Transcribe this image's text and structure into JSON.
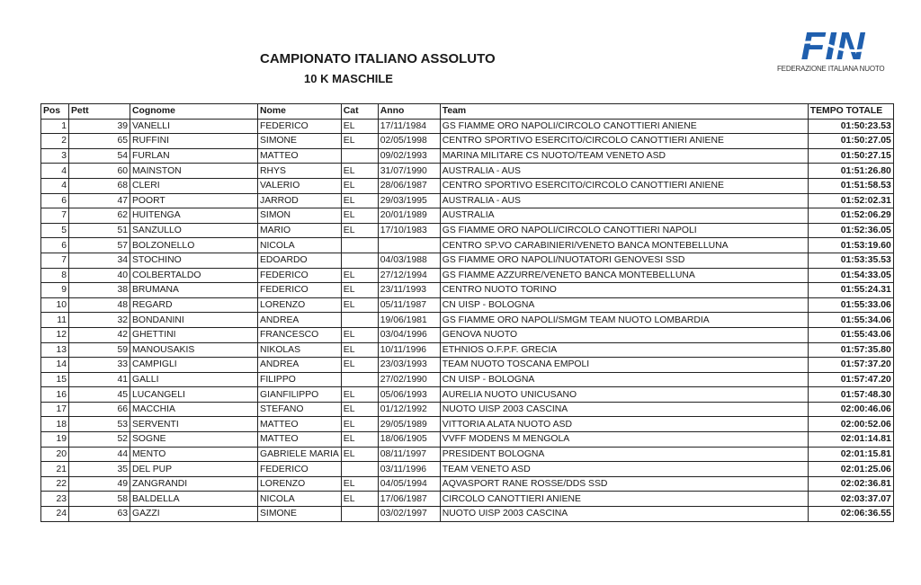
{
  "header": {
    "title": "CAMPIONATO ITALIANO ASSOLUTO",
    "subtitle": "10 K MASCHILE",
    "logo_text": "FIN",
    "logo_subtext": "FEDERAZIONE ITALIANA NUOTO",
    "logo_color": "#1f5fae"
  },
  "columns": [
    "Pos",
    "Pett",
    "Cognome",
    "Nome",
    "Cat",
    "Anno",
    "Team",
    "TEMPO TOTALE"
  ],
  "rows": [
    [
      "1",
      "39",
      "VANELLI",
      "FEDERICO",
      "EL",
      "17/11/1984",
      "GS FIAMME ORO NAPOLI/CIRCOLO CANOTTIERI ANIENE",
      "01:50:23.53"
    ],
    [
      "2",
      "65",
      "RUFFINI",
      "SIMONE",
      "EL",
      "02/05/1998",
      "CENTRO SPORTIVO ESERCITO/CIRCOLO CANOTTIERI ANIENE",
      "01:50:27.05"
    ],
    [
      "3",
      "54",
      "FURLAN",
      "MATTEO",
      "",
      "09/02/1993",
      "MARINA MILITARE CS NUOTO/TEAM VENETO ASD",
      "01:50:27.15"
    ],
    [
      "4",
      "60",
      "MAINSTON",
      "RHYS",
      "EL",
      "31/07/1990",
      "AUSTRALIA - AUS",
      "01:51:26.80"
    ],
    [
      "4",
      "68",
      "CLERI",
      "VALERIO",
      "EL",
      "28/06/1987",
      "CENTRO SPORTIVO ESERCITO/CIRCOLO CANOTTIERI ANIENE",
      "01:51:58.53"
    ],
    [
      "6",
      "47",
      "POORT",
      "JARROD",
      "EL",
      "29/03/1995",
      "AUSTRALIA - AUS",
      "01:52:02.31"
    ],
    [
      "7",
      "62",
      "HUITENGA",
      "SIMON",
      "EL",
      "20/01/1989",
      "AUSTRALIA",
      "01:52:06.29"
    ],
    [
      "5",
      "51",
      "SANZULLO",
      "MARIO",
      "EL",
      "17/10/1983",
      "GS FIAMME ORO NAPOLI/CIRCOLO CANOTTIERI NAPOLI",
      "01:52:36.05"
    ],
    [
      "6",
      "57",
      "BOLZONELLO",
      "NICOLA",
      "",
      "",
      "CENTRO SP.VO CARABINIERI/VENETO BANCA MONTEBELLUNA",
      "01:53:19.60"
    ],
    [
      "7",
      "34",
      "STOCHINO",
      "EDOARDO",
      "",
      "04/03/1988",
      "GS FIAMME ORO NAPOLI/NUOTATORI GENOVESI SSD",
      "01:53:35.53"
    ],
    [
      "8",
      "40",
      "COLBERTALDO",
      "FEDERICO",
      "EL",
      "27/12/1994",
      "GS FIAMME AZZURRE/VENETO BANCA MONTEBELLUNA",
      "01:54:33.05"
    ],
    [
      "9",
      "38",
      "BRUMANA",
      "FEDERICO",
      "EL",
      "23/11/1993",
      "CENTRO NUOTO TORINO",
      "01:55:24.31"
    ],
    [
      "10",
      "48",
      "REGARD",
      "LORENZO",
      "EL",
      "05/11/1987",
      "CN UISP - BOLOGNA",
      "01:55:33.06"
    ],
    [
      "11",
      "32",
      "BONDANINI",
      "ANDREA",
      "",
      "19/06/1981",
      "GS FIAMME ORO NAPOLI/SMGM TEAM NUOTO LOMBARDIA",
      "01:55:34.06"
    ],
    [
      "12",
      "42",
      "GHETTINI",
      "FRANCESCO",
      "EL",
      "03/04/1996",
      "GENOVA NUOTO",
      "01:55:43.06"
    ],
    [
      "13",
      "59",
      "MANOUSAKIS",
      "NIKOLAS",
      "EL",
      "10/11/1996",
      "ETHNIOS O.F.P.F. GRECIA",
      "01:57:35.80"
    ],
    [
      "14",
      "33",
      "CAMPIGLI",
      "ANDREA",
      "EL",
      "23/03/1993",
      "TEAM NUOTO TOSCANA EMPOLI",
      "01:57:37.20"
    ],
    [
      "15",
      "41",
      "GALLI",
      "FILIPPO",
      "",
      "27/02/1990",
      "CN UISP - BOLOGNA",
      "01:57:47.20"
    ],
    [
      "16",
      "45",
      "LUCANGELI",
      "GIANFILIPPO",
      "EL",
      "05/06/1993",
      "AURELIA NUOTO UNICUSANO",
      "01:57:48.30"
    ],
    [
      "17",
      "66",
      "MACCHIA",
      "STEFANO",
      "EL",
      "01/12/1992",
      "NUOTO UISP 2003 CASCINA",
      "02:00:46.06"
    ],
    [
      "18",
      "53",
      "SERVENTI",
      "MATTEO",
      "EL",
      "29/05/1989",
      "VITTORIA ALATA NUOTO ASD",
      "02:00:52.06"
    ],
    [
      "19",
      "52",
      "SOGNE",
      "MATTEO",
      "EL",
      "18/06/1905",
      "VVFF MODENS M MENGOLA",
      "02:01:14.81"
    ],
    [
      "20",
      "44",
      "MENTO",
      "GABRIELE MARIA",
      "EL",
      "08/11/1997",
      "PRESIDENT BOLOGNA",
      "02:01:15.81"
    ],
    [
      "21",
      "35",
      "DEL PUP",
      "FEDERICO",
      "",
      "03/11/1996",
      "TEAM VENETO ASD",
      "02:01:25.06"
    ],
    [
      "22",
      "49",
      "ZANGRANDI",
      "LORENZO",
      "EL",
      "04/05/1994",
      "AQVASPORT  RANE ROSSE/DDS SSD",
      "02:02:36.81"
    ],
    [
      "23",
      "58",
      "BALDELLA",
      "NICOLA",
      "EL",
      "17/06/1987",
      "CIRCOLO CANOTTIERI ANIENE",
      "02:03:37.07"
    ],
    [
      "24",
      "63",
      "GAZZI",
      "SIMONE",
      "",
      "03/02/1997",
      "NUOTO UISP 2003 CASCINA",
      "02:06:36.55"
    ]
  ]
}
